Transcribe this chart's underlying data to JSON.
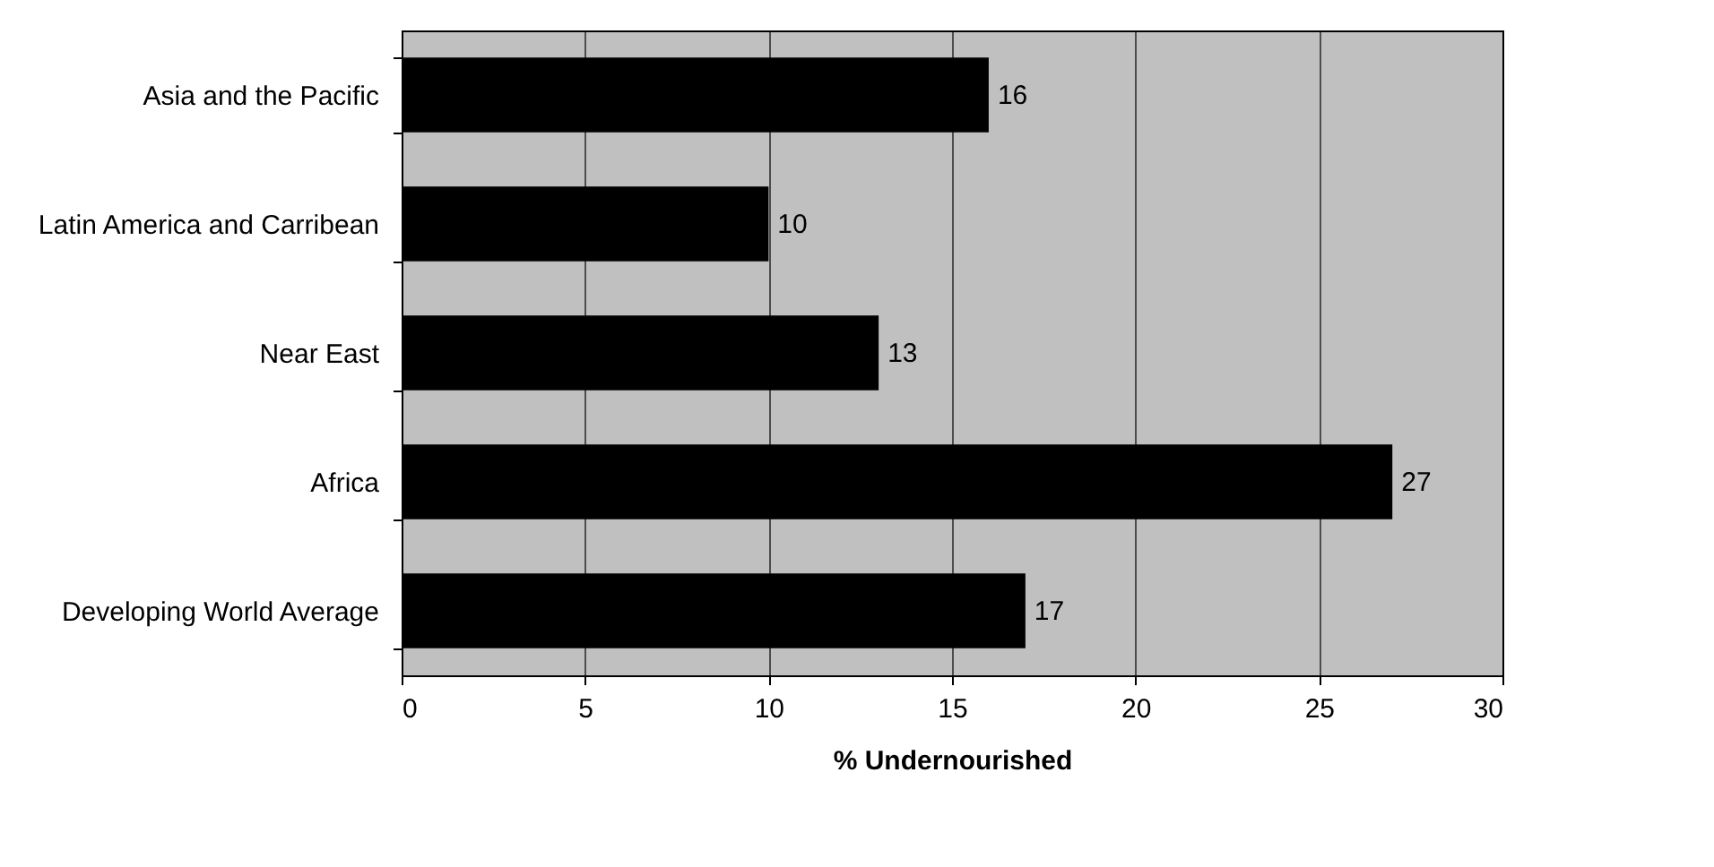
{
  "chart_data": {
    "type": "bar",
    "orientation": "horizontal",
    "xlabel": "% Undernourished",
    "categories": [
      "Asia and the Pacific",
      "Latin America and Carribean",
      "Near East",
      "Africa",
      "Developing World Average"
    ],
    "values": [
      16,
      10,
      13,
      27,
      17
    ],
    "color": "#000000",
    "xlim": [
      0,
      30
    ],
    "xticks": [
      0,
      5,
      10,
      15,
      20,
      25,
      30
    ],
    "grid": "x",
    "data_labels": true
  }
}
